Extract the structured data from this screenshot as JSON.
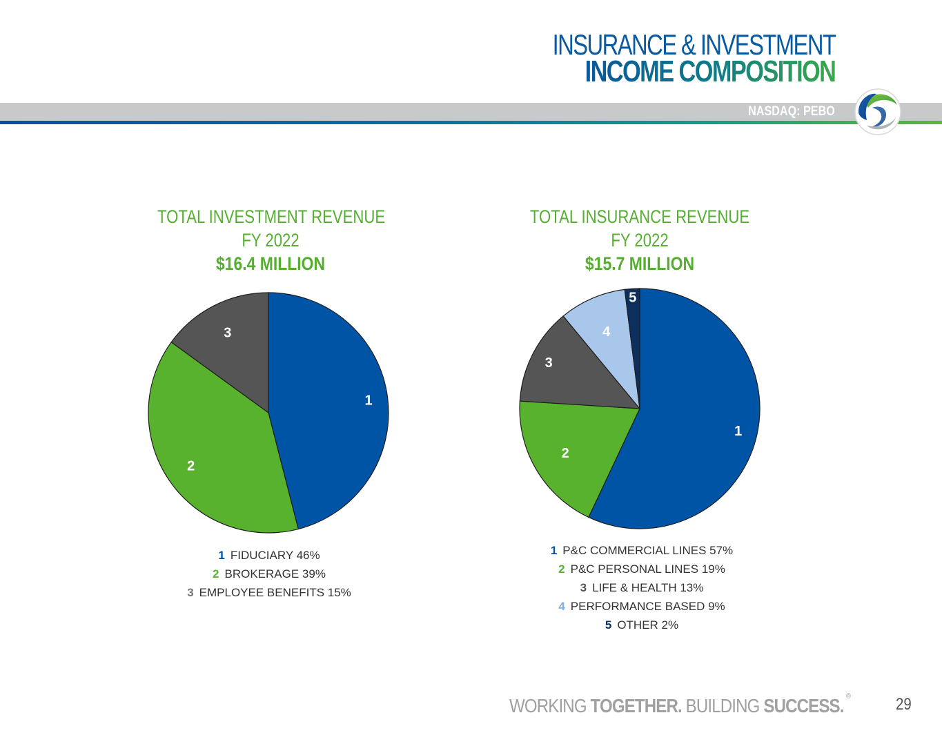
{
  "header": {
    "title_line1": "INSURANCE & INVESTMENT",
    "title_line2": "INCOME COMPOSITION",
    "ticker": "NASDAQ: PEBO"
  },
  "colors": {
    "blue": "#0054a6",
    "green": "#58b22e",
    "gray": "#555555",
    "light_blue": "#a8c7ea",
    "navy": "#0c2f5e"
  },
  "chart_data": [
    {
      "type": "pie",
      "title": "TOTAL INVESTMENT REVENUE",
      "subtitle": "FY 2022",
      "total": "$16.4 MILLION",
      "categories": [
        "FIDUCIARY",
        "BROKERAGE",
        "EMPLOYEE BENEFITS"
      ],
      "values": [
        46,
        39,
        15
      ],
      "slice_labels": [
        "1",
        "2",
        "3"
      ],
      "legend": [
        {
          "num": "1",
          "text": "FIDUCIARY 46%"
        },
        {
          "num": "2",
          "text": "BROKERAGE 39%"
        },
        {
          "num": "3",
          "text": "EMPLOYEE BENEFITS 15%"
        }
      ]
    },
    {
      "type": "pie",
      "title": "TOTAL INSURANCE REVENUE",
      "subtitle": "FY 2022",
      "total": "$15.7 MILLION",
      "categories": [
        "P&C COMMERCIAL LINES",
        "P&C PERSONAL LINES",
        "LIFE & HEALTH",
        "PERFORMANCE BASED",
        "OTHER"
      ],
      "values": [
        57,
        19,
        13,
        9,
        2
      ],
      "slice_labels": [
        "1",
        "2",
        "3",
        "4",
        "5"
      ],
      "legend": [
        {
          "num": "1",
          "text": "P&C COMMERCIAL LINES 57%"
        },
        {
          "num": "2",
          "text": "P&C PERSONAL LINES 19%"
        },
        {
          "num": "3",
          "text": "LIFE & HEALTH 13%"
        },
        {
          "num": "4",
          "text": "PERFORMANCE BASED 9%"
        },
        {
          "num": "5",
          "text": "OTHER 2%"
        }
      ]
    }
  ],
  "footer": {
    "part1": "WORKING ",
    "part2": "TOGETHER.",
    "part3": " BUILDING ",
    "part4": "SUCCESS.",
    "registered": "®",
    "page_number": "29"
  }
}
